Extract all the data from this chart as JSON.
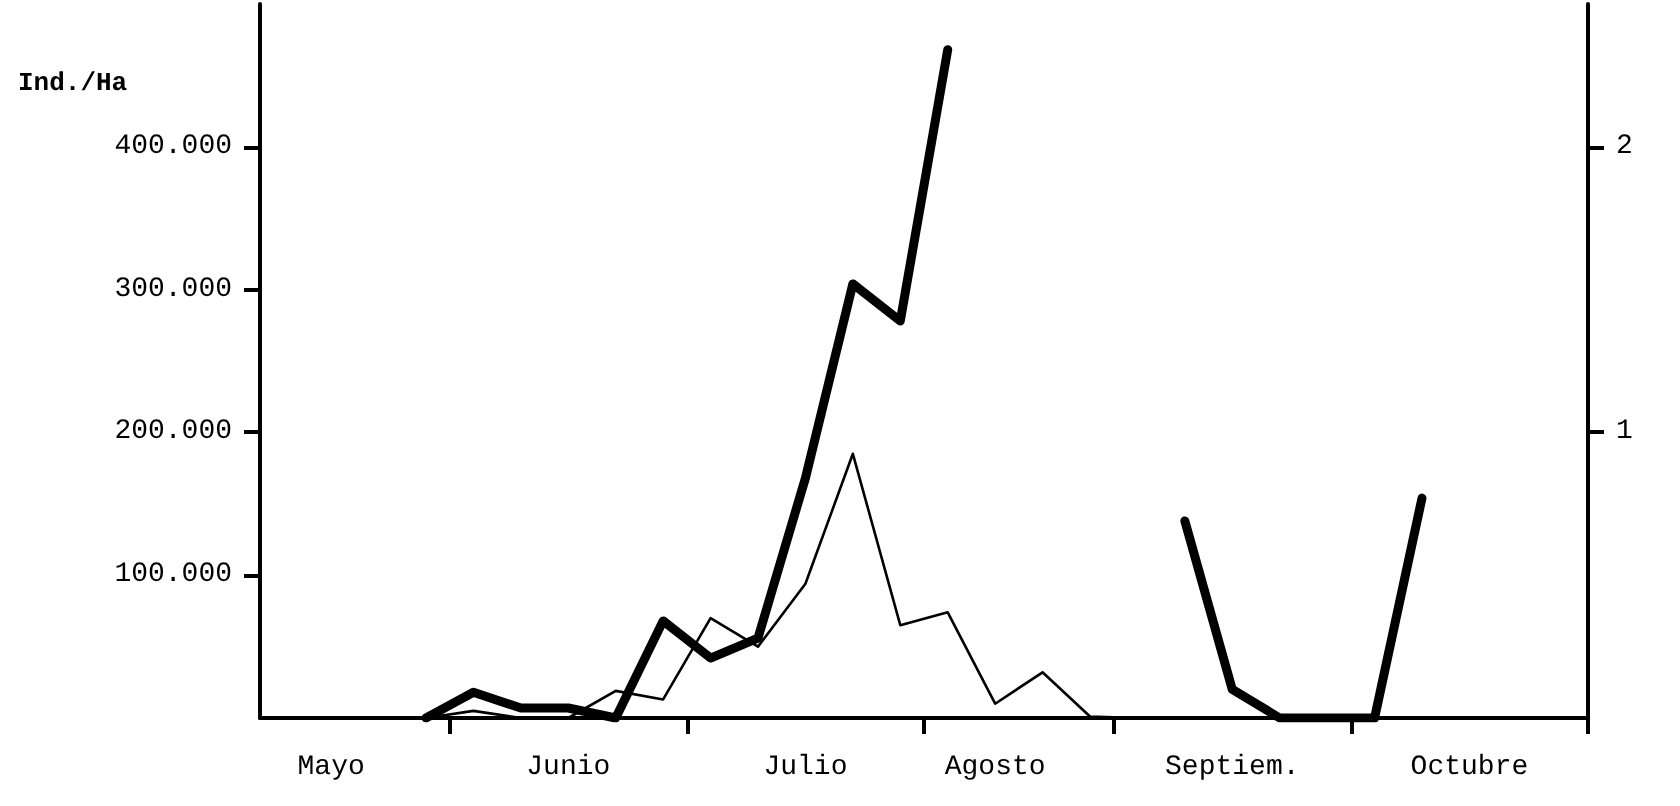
{
  "chart_data": {
    "type": "line",
    "ylabel": "Ind./Ha",
    "marker": "none",
    "categories": [
      null,
      "Mayo",
      null,
      null,
      null,
      null,
      "Junio",
      null,
      null,
      null,
      null,
      "Julio",
      null,
      null,
      null,
      "Agosto",
      null,
      null,
      null,
      null,
      "Septiem.",
      null,
      null,
      null,
      null,
      "Octubre",
      null,
      null
    ],
    "ylim": [
      0,
      500000
    ],
    "yticks": [
      {
        "value": 100000,
        "label": "100.000"
      },
      {
        "value": 200000,
        "label": "200.000"
      },
      {
        "value": 300000,
        "label": "300.000"
      },
      {
        "value": 400000,
        "label": "400.000"
      }
    ],
    "y2lim": [
      0,
      2.5
    ],
    "y2ticks": [
      1,
      2
    ],
    "series": [
      {
        "color": "#000000",
        "axis": "y",
        "values": [
          null,
          null,
          null,
          0,
          5000,
          0,
          0,
          19000,
          13000,
          70000,
          50000,
          94000,
          185000,
          65000,
          74000,
          10000,
          32000,
          1000,
          0,
          null,
          null,
          null,
          null,
          null,
          null,
          null,
          null,
          null
        ]
      },
      {
        "color": "#000000",
        "axis": "y2",
        "values": [
          null,
          null,
          null,
          0,
          0.09,
          0.035,
          0.035,
          0,
          0.34,
          0.21,
          0.28,
          0.84,
          1.52,
          1.39,
          2.34,
          null,
          null,
          null,
          null,
          0.69,
          0.1,
          0,
          0,
          0,
          0.77,
          null,
          null,
          null
        ]
      }
    ]
  }
}
